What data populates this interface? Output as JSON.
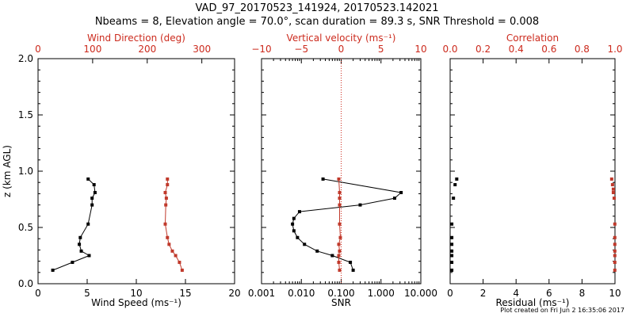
{
  "title_line1": "VAD_97_20170523_141924, 20170523.142021",
  "title_line2": "Nbeams = 8, Elevation angle = 70.0°, scan duration = 89.3 s, SNR Threshold = 0.008",
  "footer": "Plot created on Fri Jun  2 16:35:06 2017",
  "colors": {
    "axis": "#000000",
    "accent": "#cc2a1d",
    "marker_red": "#c0392b"
  },
  "chart_data": [
    {
      "type": "line",
      "panel": "wind",
      "ylabel": "z (km AGL)",
      "ylim": [
        0,
        2.0
      ],
      "yticks": [
        "0.0",
        "0.5",
        "1.0",
        "1.5",
        "2.0"
      ],
      "xlabel": "Wind Speed (ms⁻¹)",
      "xlim": [
        0,
        20
      ],
      "xticks": [
        "0",
        "5",
        "10",
        "15",
        "20"
      ],
      "top_xlabel": "Wind Direction (deg)",
      "top_xlim": [
        0,
        360
      ],
      "top_xticks": [
        "0",
        "100",
        "200",
        "300"
      ],
      "series": [
        {
          "axis": "bottom",
          "color": "#000000",
          "x": [
            1.5,
            3.5,
            5.2,
            4.4,
            4.2,
            4.3,
            5.1,
            5.5,
            5.5,
            5.8,
            5.7,
            5.1
          ],
          "y": [
            0.12,
            0.19,
            0.25,
            0.29,
            0.35,
            0.41,
            0.53,
            0.7,
            0.76,
            0.81,
            0.88,
            0.93
          ]
        },
        {
          "axis": "top",
          "color": "#c0392b",
          "x": [
            264,
            259,
            252,
            246,
            240,
            237,
            233,
            234,
            235,
            233,
            237,
            237
          ],
          "y": [
            0.12,
            0.19,
            0.25,
            0.29,
            0.35,
            0.41,
            0.53,
            0.7,
            0.76,
            0.81,
            0.88,
            0.93
          ]
        }
      ]
    },
    {
      "type": "line",
      "panel": "snr",
      "ylim": [
        0,
        2.0
      ],
      "xlabel": "SNR",
      "xscale": "log",
      "xlim": [
        0.001,
        10
      ],
      "xticks": [
        "0.001",
        "0.010",
        "0.100",
        "1.000",
        "10.000"
      ],
      "top_xlabel": "Vertical velocity (ms⁻¹)",
      "top_xlim": [
        -10,
        10
      ],
      "top_xticks": [
        "−10",
        "−5",
        "0",
        "5",
        "10"
      ],
      "reference_line": {
        "axis": "top",
        "x": 0,
        "style": "dotted",
        "color": "#cc2a1d"
      },
      "series": [
        {
          "axis": "bottom",
          "color": "#000000",
          "x": [
            0.2,
            0.17,
            0.06,
            0.025,
            0.012,
            0.008,
            0.0065,
            0.006,
            0.0065,
            0.009,
            0.3,
            2.2,
            3.2,
            0.035
          ],
          "y": [
            0.12,
            0.19,
            0.25,
            0.29,
            0.35,
            0.41,
            0.47,
            0.53,
            0.58,
            0.64,
            0.7,
            0.76,
            0.81,
            0.93
          ]
        },
        {
          "axis": "top",
          "color": "#c0392b",
          "x": [
            -0.2,
            -0.3,
            -0.3,
            -0.2,
            -0.3,
            -0.1,
            -0.2,
            -0.2,
            -0.2,
            -0.2,
            -0.3
          ],
          "y": [
            0.12,
            0.19,
            0.25,
            0.29,
            0.35,
            0.41,
            0.53,
            0.7,
            0.76,
            0.81,
            0.93
          ]
        }
      ]
    },
    {
      "type": "scatter",
      "panel": "residual",
      "ylim": [
        0,
        2.0
      ],
      "xlabel": "Residual (ms⁻¹)",
      "xlim": [
        0,
        10
      ],
      "xticks": [
        "0",
        "2",
        "4",
        "6",
        "8",
        "10"
      ],
      "top_xlabel": "Correlation",
      "top_xlim": [
        0,
        1.0
      ],
      "top_xticks": [
        "0.0",
        "0.2",
        "0.4",
        "0.6",
        "0.8",
        "1.0"
      ],
      "series": [
        {
          "axis": "bottom",
          "color": "#000000",
          "x": [
            0.1,
            0.1,
            0.1,
            0.1,
            0.1,
            0.1,
            0.1,
            0.2,
            0.3,
            0.4
          ],
          "y": [
            0.12,
            0.19,
            0.25,
            0.29,
            0.35,
            0.41,
            0.53,
            0.76,
            0.88,
            0.93
          ]
        },
        {
          "axis": "top",
          "color": "#c0392b",
          "x": [
            0.999,
            0.999,
            0.999,
            0.999,
            0.999,
            0.999,
            0.999,
            0.995,
            0.99,
            0.99,
            0.985,
            0.98
          ],
          "y": [
            0.12,
            0.19,
            0.25,
            0.29,
            0.35,
            0.41,
            0.53,
            0.76,
            0.81,
            0.84,
            0.88,
            0.93
          ]
        }
      ]
    }
  ]
}
